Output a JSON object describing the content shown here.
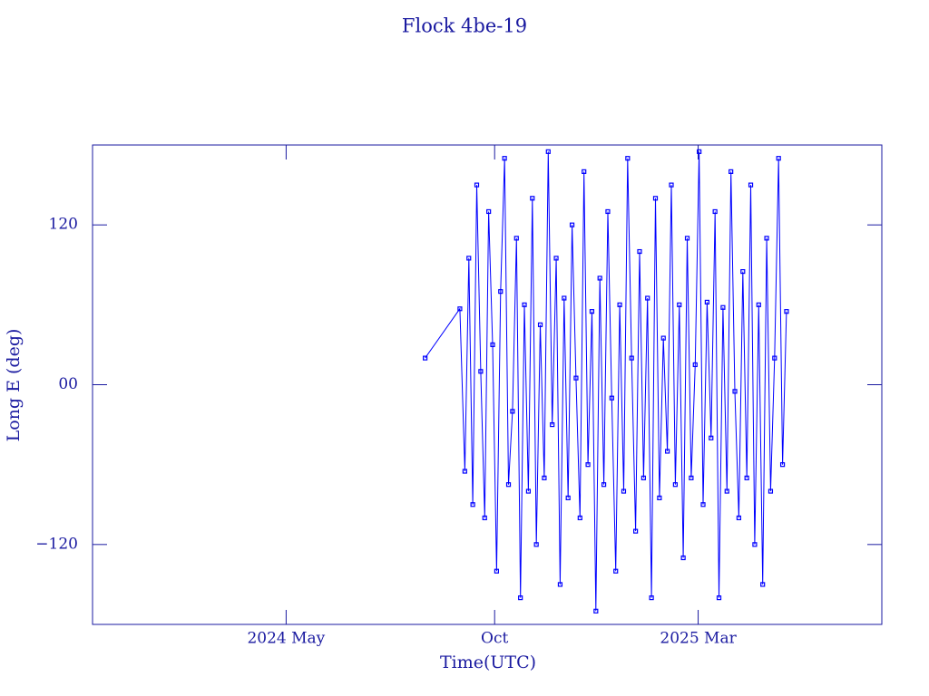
{
  "chart_data": {
    "type": "line",
    "title": "Flock 4be-19",
    "x_label": "Time(UTC)",
    "y_label": "Long E (deg)",
    "xlim": [
      2023.94,
      2025.53
    ],
    "xticks": [
      {
        "value": 2024.33,
        "label": "2024 May"
      },
      {
        "value": 2024.75,
        "label": "Oct"
      },
      {
        "value": 2025.16,
        "label": "2025 Mar"
      }
    ],
    "ylim": [
      -180,
      180
    ],
    "yticks": [
      {
        "value": -120,
        "label": "−120"
      },
      {
        "value": 0,
        "label": "00"
      },
      {
        "value": 120,
        "label": "120"
      }
    ],
    "x": [
      2024.61,
      2024.68,
      2024.69,
      2024.698,
      2024.706,
      2024.714,
      2024.722,
      2024.73,
      2024.738,
      2024.746,
      2024.754,
      2024.762,
      2024.77,
      2024.778,
      2024.786,
      2024.794,
      2024.802,
      2024.81,
      2024.818,
      2024.826,
      2024.834,
      2024.842,
      2024.85,
      2024.858,
      2024.866,
      2024.874,
      2024.882,
      2024.89,
      2024.898,
      2024.906,
      2024.914,
      2024.922,
      2024.93,
      2024.938,
      2024.946,
      2024.954,
      2024.962,
      2024.97,
      2024.978,
      2024.986,
      2024.994,
      2025.002,
      2025.01,
      2025.018,
      2025.026,
      2025.034,
      2025.042,
      2025.05,
      2025.058,
      2025.066,
      2025.074,
      2025.082,
      2025.09,
      2025.098,
      2025.106,
      2025.114,
      2025.122,
      2025.13,
      2025.138,
      2025.146,
      2025.154,
      2025.162,
      2025.17,
      2025.178,
      2025.186,
      2025.194,
      2025.202,
      2025.21,
      2025.218,
      2025.226,
      2025.234,
      2025.242,
      2025.25,
      2025.258,
      2025.266,
      2025.274,
      2025.282,
      2025.29,
      2025.298,
      2025.306,
      2025.314,
      2025.322,
      2025.33,
      2025.338
    ],
    "series": [
      {
        "color": "#0000ff",
        "values": [
          20,
          57,
          -65,
          95,
          -90,
          150,
          10,
          -100,
          130,
          30,
          -140,
          70,
          170,
          -75,
          -20,
          110,
          -160,
          60,
          -80,
          140,
          -120,
          45,
          -70,
          175,
          -30,
          95,
          -150,
          65,
          -85,
          120,
          5,
          -100,
          160,
          -60,
          55,
          -170,
          80,
          -75,
          130,
          -10,
          -140,
          60,
          -80,
          170,
          20,
          -110,
          100,
          -70,
          65,
          -160,
          140,
          -85,
          35,
          -50,
          150,
          -75,
          60,
          -130,
          110,
          -70,
          15,
          175,
          -90,
          62,
          -40,
          130,
          -160,
          58,
          -80,
          160,
          -5,
          -100,
          85,
          -70,
          150,
          -120,
          60,
          -150,
          110,
          -80,
          20,
          170,
          -60,
          55
        ]
      }
    ]
  }
}
